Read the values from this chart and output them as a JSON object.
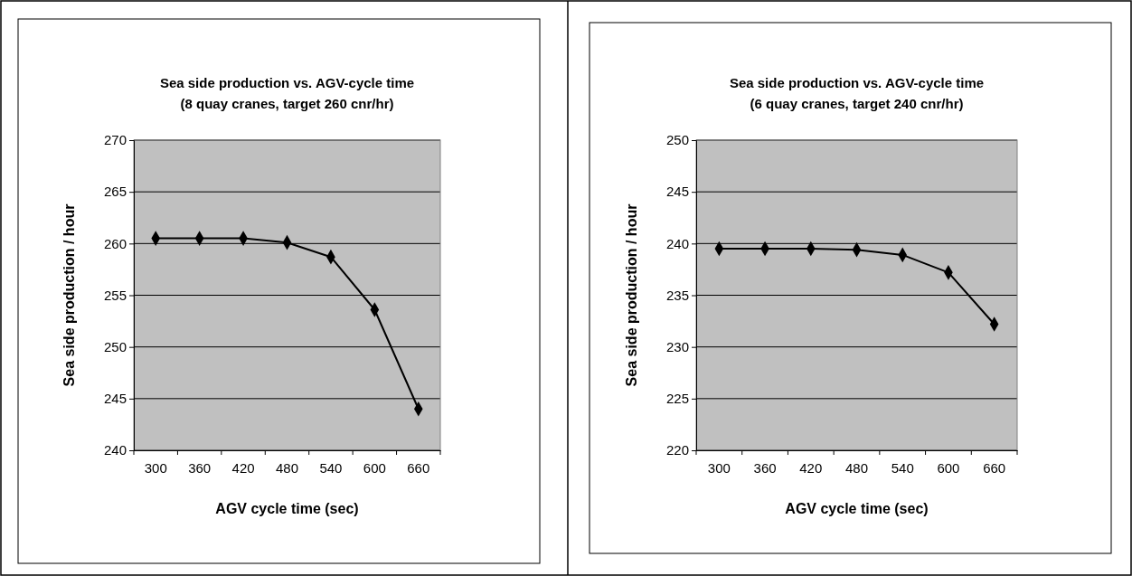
{
  "chart_data": [
    {
      "type": "line",
      "title": "Sea side production vs. AGV-cycle time\n(8 quay cranes, target 260 cnr/hr)",
      "xlabel": "AGV cycle time (sec)",
      "ylabel": "Sea side production / hour",
      "categories": [
        "300",
        "360",
        "420",
        "480",
        "540",
        "600",
        "660"
      ],
      "series": [
        {
          "color": "#000000",
          "values": [
            260.5,
            260.5,
            260.5,
            260.1,
            258.7,
            253.6,
            244.0
          ]
        }
      ],
      "ylim": [
        240,
        270
      ],
      "yticks": [
        240,
        245,
        250,
        255,
        260,
        265,
        270
      ],
      "grid": "y",
      "marker": "diamond"
    },
    {
      "type": "line",
      "title": "Sea side production vs. AGV-cycle time\n(6 quay cranes, target 240 cnr/hr)",
      "xlabel": "AGV cycle time (sec)",
      "ylabel": "Sea side production / hour",
      "categories": [
        "300",
        "360",
        "420",
        "480",
        "540",
        "600",
        "660"
      ],
      "series": [
        {
          "color": "#000000",
          "values": [
            239.5,
            239.5,
            239.5,
            239.4,
            238.9,
            237.2,
            232.2
          ]
        }
      ],
      "ylim": [
        220,
        250
      ],
      "yticks": [
        220,
        225,
        230,
        235,
        240,
        245,
        250
      ],
      "grid": "y",
      "marker": "diamond"
    }
  ]
}
